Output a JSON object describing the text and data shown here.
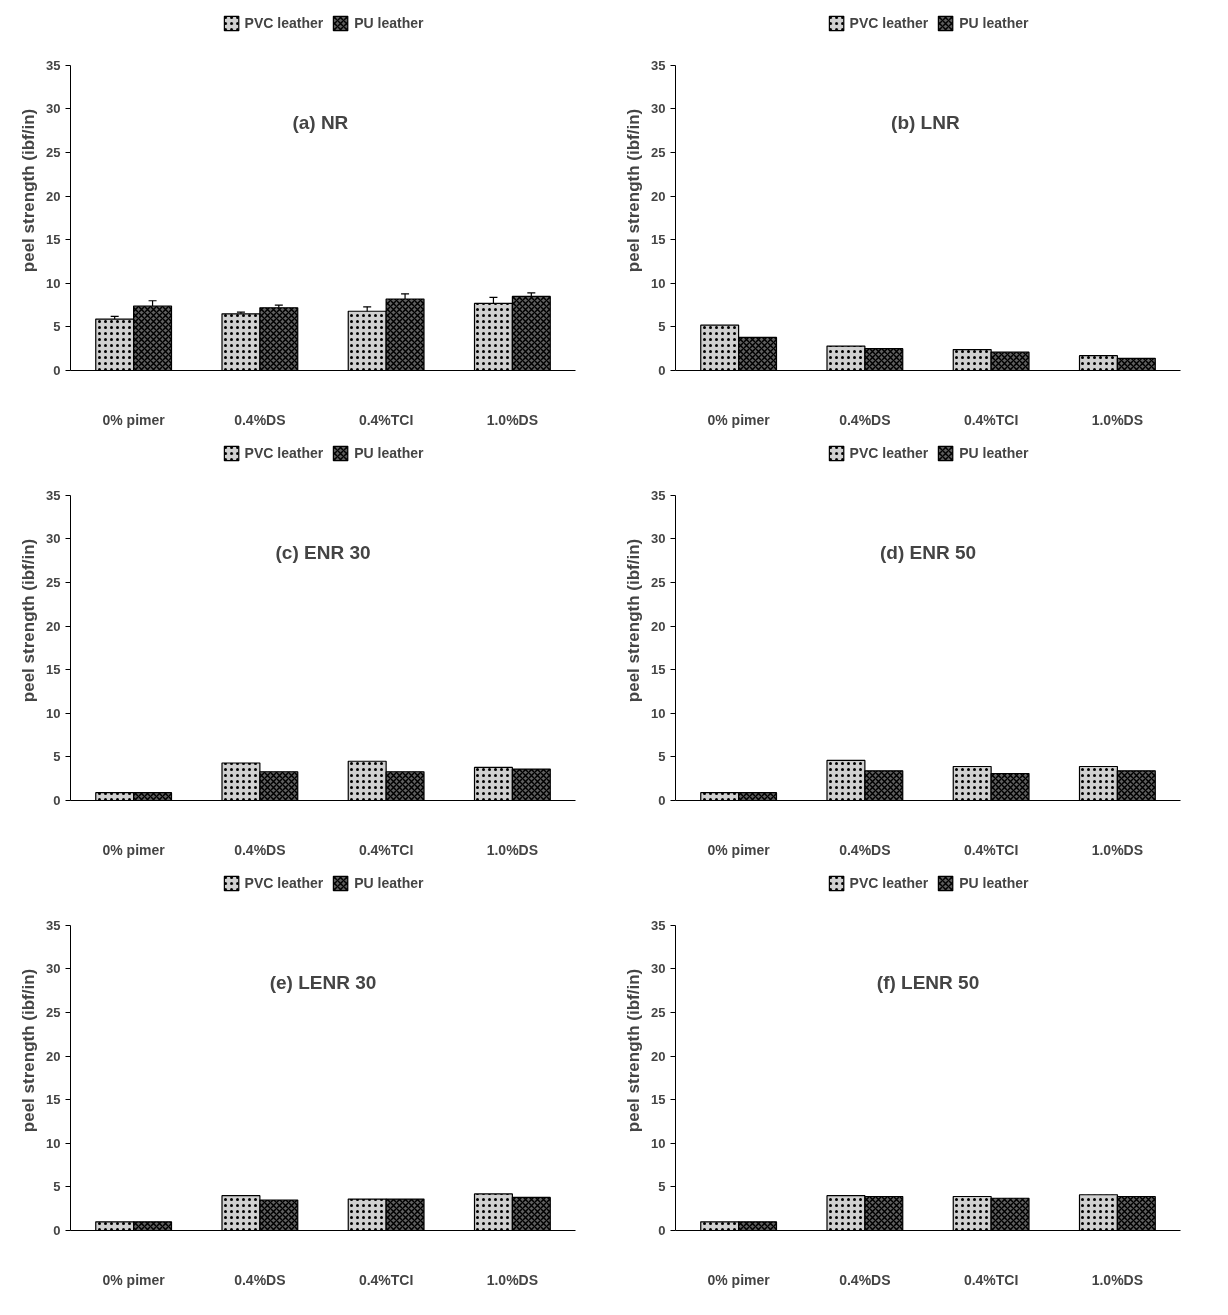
{
  "chart_data": [
    {
      "type": "bar",
      "title": "(a)  NR",
      "ylabel": "peel strength (ibf/in)",
      "categories": [
        "0% pimer",
        "0.4%DS",
        "0.4%TCI",
        "1.0%DS"
      ],
      "ylim": [
        0,
        35
      ],
      "yticks": [
        0,
        5,
        10,
        15,
        20,
        25,
        30,
        35
      ],
      "legend": "top",
      "grid": false,
      "series": [
        {
          "name": "PVC leather",
          "color": "#d0d0d0",
          "values": [
            5.9,
            6.5,
            6.8,
            7.7
          ],
          "errors": [
            0.3,
            0.2,
            0.5,
            0.7
          ]
        },
        {
          "name": "PU leather",
          "color": "#606060",
          "values": [
            7.4,
            7.2,
            8.2,
            8.5
          ],
          "errors": [
            0.6,
            0.3,
            0.6,
            0.4
          ]
        }
      ]
    },
    {
      "type": "bar",
      "title": "(b)  LNR",
      "ylabel": "peel strength (ibf/in)",
      "categories": [
        "0% pimer",
        "0.4%DS",
        "0.4%TCI",
        "1.0%DS"
      ],
      "ylim": [
        0,
        35
      ],
      "yticks": [
        0,
        5,
        10,
        15,
        20,
        25,
        30,
        35
      ],
      "legend": "top",
      "grid": false,
      "series": [
        {
          "name": "PVC leather",
          "color": "#d0d0d0",
          "values": [
            5.2,
            2.8,
            2.4,
            1.7
          ]
        },
        {
          "name": "PU leather",
          "color": "#606060",
          "values": [
            3.8,
            2.5,
            2.1,
            1.4
          ]
        }
      ]
    },
    {
      "type": "bar",
      "title": "(c) ENR 30",
      "ylabel": "peel strength (ibf/in)",
      "categories": [
        "0% pimer",
        "0.4%DS",
        "0.4%TCI",
        "1.0%DS"
      ],
      "ylim": [
        0,
        35
      ],
      "yticks": [
        0,
        5,
        10,
        15,
        20,
        25,
        30,
        35
      ],
      "legend": "top",
      "grid": false,
      "series": [
        {
          "name": "PVC leather",
          "color": "#d0d0d0",
          "values": [
            0.9,
            4.3,
            4.5,
            3.8
          ]
        },
        {
          "name": "PU leather",
          "color": "#606060",
          "values": [
            0.9,
            3.3,
            3.3,
            3.6
          ]
        }
      ]
    },
    {
      "type": "bar",
      "title": "(d) ENR 50",
      "ylabel": "peel strength (ibf/in)",
      "categories": [
        "0% pimer",
        "0.4%DS",
        "0.4%TCI",
        "1.0%DS"
      ],
      "ylim": [
        0,
        35
      ],
      "yticks": [
        0,
        5,
        10,
        15,
        20,
        25,
        30,
        35
      ],
      "legend": "top",
      "grid": false,
      "series": [
        {
          "name": "PVC leather",
          "color": "#d0d0d0",
          "values": [
            0.9,
            4.6,
            3.9,
            3.9
          ]
        },
        {
          "name": "PU leather",
          "color": "#606060",
          "values": [
            0.9,
            3.4,
            3.1,
            3.4
          ]
        }
      ]
    },
    {
      "type": "bar",
      "title": "(e) LENR 30",
      "ylabel": "peel strength (ibf/in)",
      "categories": [
        "0% pimer",
        "0.4%DS",
        "0.4%TCI",
        "1.0%DS"
      ],
      "ylim": [
        0,
        35
      ],
      "yticks": [
        0,
        5,
        10,
        15,
        20,
        25,
        30,
        35
      ],
      "legend": "top",
      "grid": false,
      "series": [
        {
          "name": "PVC leather",
          "color": "#d0d0d0",
          "values": [
            1.0,
            4.0,
            3.6,
            4.2
          ]
        },
        {
          "name": "PU leather",
          "color": "#606060",
          "values": [
            1.0,
            3.5,
            3.6,
            3.8
          ]
        }
      ]
    },
    {
      "type": "bar",
      "title": "(f) LENR 50",
      "ylabel": "peel strength (ibf/in)",
      "categories": [
        "0% pimer",
        "0.4%DS",
        "0.4%TCI",
        "1.0%DS"
      ],
      "ylim": [
        0,
        35
      ],
      "yticks": [
        0,
        5,
        10,
        15,
        20,
        25,
        30,
        35
      ],
      "legend": "top",
      "grid": false,
      "series": [
        {
          "name": "PVC leather",
          "color": "#d0d0d0",
          "values": [
            1.0,
            4.0,
            3.9,
            4.1
          ]
        },
        {
          "name": "PU leather",
          "color": "#606060",
          "values": [
            1.0,
            3.9,
            3.7,
            3.9
          ]
        }
      ]
    }
  ]
}
